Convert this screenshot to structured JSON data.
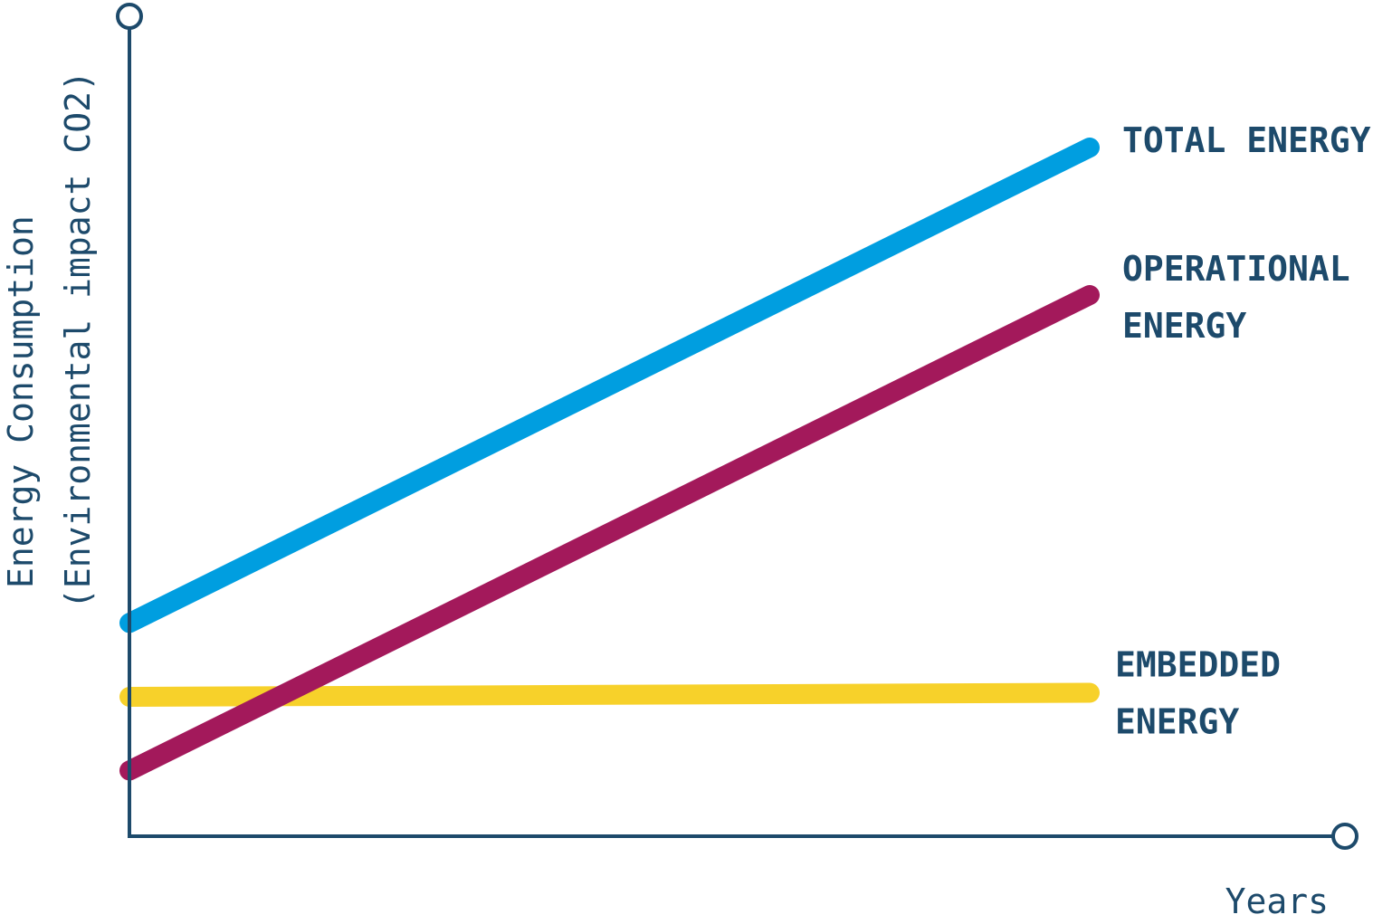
{
  "chart_data": {
    "type": "line",
    "title": "",
    "xlabel": "Years",
    "ylabel": "Energy Consumption",
    "ylabel_sub": "(Environmental impact CO2)",
    "xlim": [
      0,
      10
    ],
    "ylim": [
      0,
      10
    ],
    "grid": false,
    "legend": "direct labels at line ends (right)",
    "x": [
      0,
      7.9
    ],
    "series": [
      {
        "name": "TOTAL ENERGY",
        "label_lines": [
          "TOTAL ENERGY"
        ],
        "color": "#009ee0",
        "values": [
          2.6,
          8.4
        ]
      },
      {
        "name": "OPERATIONAL ENERGY",
        "label_lines": [
          "OPERATIONAL",
          "ENERGY"
        ],
        "color": "#a3195b",
        "values": [
          0.8,
          6.6
        ]
      },
      {
        "name": "EMBEDDED ENERGY",
        "label_lines": [
          "EMBEDDED",
          "ENERGY"
        ],
        "color": "#f7d12a",
        "values": [
          1.7,
          1.75
        ]
      }
    ],
    "colors": {
      "axis": "#1d4a6b",
      "text": "#1d4a6b"
    }
  }
}
